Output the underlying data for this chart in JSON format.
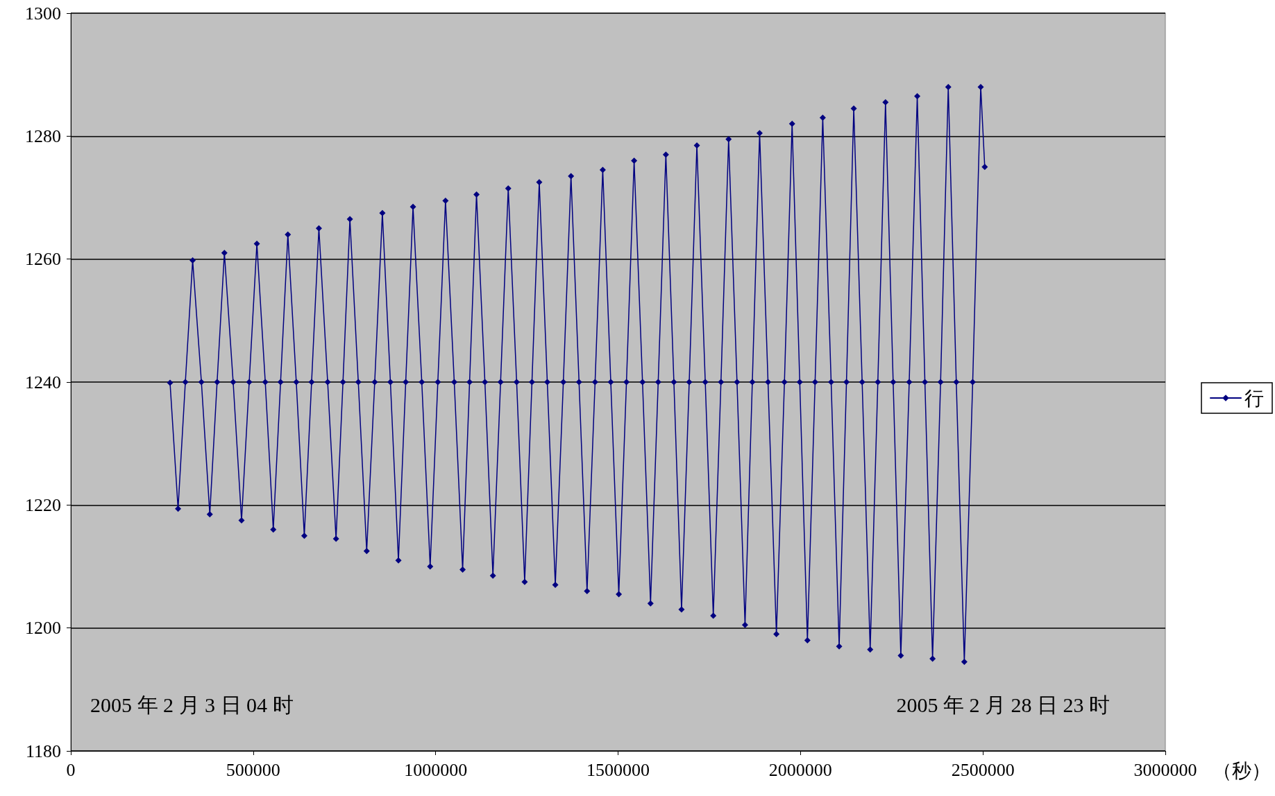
{
  "chart_data": {
    "type": "line",
    "xlabel": "（秒）",
    "annotations": [
      "2005 年 2 月 3 日 04 时",
      "2005 年 2 月 28 日 23 时"
    ],
    "x": [
      272000,
      294000,
      314000,
      334000,
      358000,
      381000,
      401000,
      421000,
      445000,
      468000,
      489000,
      510000,
      533000,
      555000,
      575000,
      595000,
      618000,
      640000,
      660000,
      680000,
      704000,
      727000,
      746000,
      765000,
      788000,
      811000,
      833000,
      854000,
      876000,
      898000,
      918000,
      938000,
      962000,
      985000,
      1006000,
      1027000,
      1051000,
      1074000,
      1093000,
      1112000,
      1135000,
      1157000,
      1178000,
      1199000,
      1222000,
      1244000,
      1264000,
      1284000,
      1306000,
      1328000,
      1350000,
      1371000,
      1393000,
      1415000,
      1437000,
      1458000,
      1480000,
      1502000,
      1523000,
      1544000,
      1567000,
      1589000,
      1610000,
      1631000,
      1653000,
      1674000,
      1695000,
      1716000,
      1739000,
      1761000,
      1782000,
      1803000,
      1826000,
      1848000,
      1868000,
      1888000,
      1911000,
      1934000,
      1956000,
      1977000,
      1998000,
      2019000,
      2040000,
      2061000,
      2084000,
      2106000,
      2126000,
      2146000,
      2169000,
      2191000,
      2212000,
      2233000,
      2254000,
      2275000,
      2298000,
      2320000,
      2341000,
      2362000,
      2384000,
      2405000,
      2427000,
      2449000,
      2472000,
      2494000,
      2505000
    ],
    "series": [
      {
        "name": "行",
        "color": "#000080",
        "values": [
          1239.9,
          1219.4,
          1240,
          1259.8,
          1240,
          1218.5,
          1240,
          1261,
          1240,
          1217.5,
          1240,
          1262.5,
          1240,
          1216,
          1240,
          1264,
          1240,
          1215,
          1240,
          1265,
          1240,
          1214.5,
          1240,
          1266.5,
          1240,
          1212.5,
          1240,
          1267.5,
          1240,
          1211,
          1240,
          1268.5,
          1240,
          1210,
          1240,
          1269.5,
          1240,
          1209.5,
          1240,
          1270.5,
          1240,
          1208.5,
          1240,
          1271.5,
          1240,
          1207.5,
          1240,
          1272.5,
          1240,
          1207,
          1240,
          1273.5,
          1240,
          1206,
          1240,
          1274.5,
          1240,
          1205.5,
          1240,
          1276,
          1240,
          1204,
          1240,
          1277,
          1240,
          1203,
          1240,
          1278.5,
          1240,
          1202,
          1240,
          1279.5,
          1240,
          1200.5,
          1240,
          1280.5,
          1240,
          1199,
          1240,
          1282,
          1240,
          1198,
          1240,
          1283,
          1240,
          1197,
          1240,
          1284.5,
          1240,
          1196.5,
          1240,
          1285.5,
          1240,
          1195.5,
          1240,
          1286.5,
          1240,
          1195,
          1240,
          1288,
          1240,
          1194.5,
          1240,
          1288,
          1275
        ]
      }
    ],
    "xlim": [
      0,
      3000000
    ],
    "xticks": [
      0,
      500000,
      1000000,
      1500000,
      2000000,
      2500000,
      3000000
    ],
    "ylim": [
      1180,
      1300
    ],
    "yticks": [
      1180,
      1200,
      1220,
      1240,
      1260,
      1280,
      1300
    ],
    "grid": "y",
    "legend": "right",
    "marker": "diamond",
    "line_style": "solid"
  }
}
